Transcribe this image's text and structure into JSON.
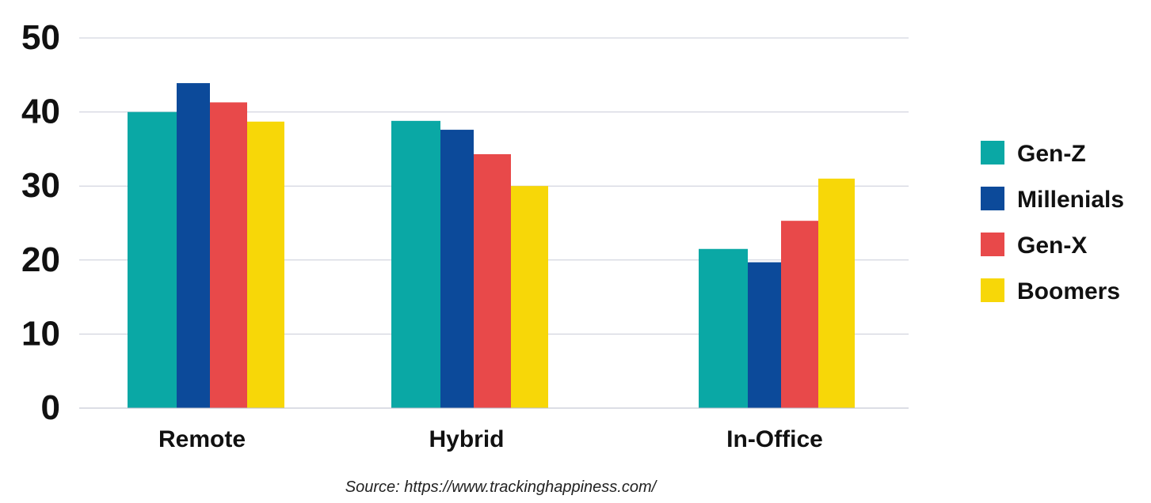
{
  "chart_data": {
    "type": "bar",
    "categories": [
      "Remote",
      "Hybrid",
      "In-Office"
    ],
    "series": [
      {
        "name": "Gen-Z",
        "color": "#0aa8a5",
        "values": [
          40,
          38.8,
          21.5
        ]
      },
      {
        "name": "Millenials",
        "color": "#0c4a9a",
        "values": [
          43.9,
          37.6,
          19.7
        ]
      },
      {
        "name": "Gen-X",
        "color": "#e8494a",
        "values": [
          41.3,
          34.3,
          25.3
        ]
      },
      {
        "name": "Boomers",
        "color": "#f7d708",
        "values": [
          38.7,
          30,
          31
        ]
      }
    ],
    "yticks": [
      0,
      10,
      20,
      30,
      40,
      50
    ],
    "ylim": [
      0,
      50
    ],
    "grid": true,
    "legend": "right",
    "source": "Source: https://www.trackinghappiness.com/"
  }
}
